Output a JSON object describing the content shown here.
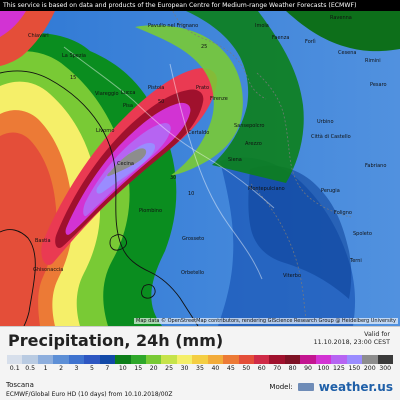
{
  "header": {
    "banner_text": "This service is based on data and products of the European Centre for Medium-range Weather Forecasts (ECMWF)"
  },
  "map": {
    "attribution": "Map data © OpenStreetMap contributors, rendering GIScience Research Group @ Heidelberg University",
    "labels": [
      "Chiavari",
      "Pavullo nel Frignano",
      "Imola",
      "Ravenna",
      "Faenza",
      "Forlì",
      "Cesena",
      "Rimini",
      "Pesaro",
      "La Spezia",
      "Viareggio",
      "Lucca",
      "Pistoia",
      "Prato",
      "Firenze",
      "Pisa",
      "Livorno",
      "Cecina",
      "Certaldo",
      "Sansepolcro",
      "Arezzo",
      "Città di Castello",
      "Urbino",
      "Siena",
      "Fabriano",
      "Montepulciano",
      "Perugia",
      "Foligno",
      "Piombino",
      "Grosseto",
      "Spoleto",
      "Orbetello",
      "Terni",
      "Viterbo",
      "Bastia",
      "Ghisonaccia",
      "25",
      "50",
      "10",
      "15",
      "30"
    ]
  },
  "legend": {
    "title": "Precipitation, 24h (mm)",
    "valid_label": "Valid for",
    "valid_time": "11.10.2018, 23:00 CEST",
    "region": "Toscana",
    "model_line": "ECMWF/Global Euro HD (10 days) from 10.10.2018/00Z",
    "brand_label": "Model:",
    "brand_name": "weather.us",
    "scale_values": [
      "0.1",
      "0.5",
      "1",
      "2",
      "3",
      "5",
      "7",
      "10",
      "15",
      "20",
      "25",
      "30",
      "35",
      "40",
      "45",
      "50",
      "60",
      "70",
      "80",
      "90",
      "100",
      "125",
      "150",
      "200",
      "300"
    ],
    "scale_colors": [
      "#d7dfeb",
      "#b9cbe2",
      "#8daedd",
      "#5d8fd6",
      "#3f73cf",
      "#2e57c2",
      "#134aa8",
      "#0d7e1a",
      "#2ea72a",
      "#79ca35",
      "#c6e34a",
      "#f5ef69",
      "#f4ce43",
      "#f2ab3a",
      "#ec7a36",
      "#e44e39",
      "#cf2b47",
      "#a0112d",
      "#7e1225",
      "#c31590",
      "#d233d3",
      "#b664f2",
      "#9a8cff",
      "#8d8d8d",
      "#3a3a3a"
    ]
  }
}
